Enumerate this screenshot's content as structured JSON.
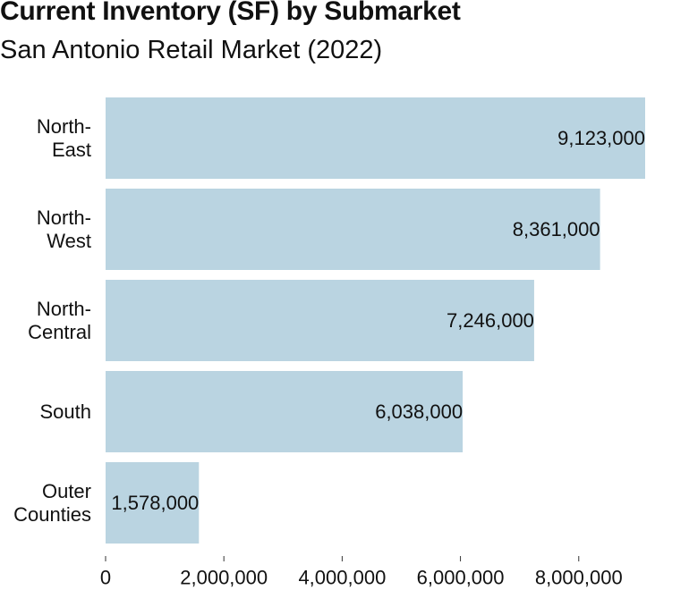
{
  "chart_data": {
    "type": "bar",
    "orientation": "horizontal",
    "title": "Current Inventory (SF) by Submarket",
    "subtitle": "San Antonio Retail Market (2022)",
    "xlabel": "",
    "ylabel": "",
    "categories": [
      [
        "North-",
        "East"
      ],
      [
        "North-",
        "West"
      ],
      [
        "North-",
        "Central"
      ],
      [
        "South"
      ],
      [
        "Outer",
        "Counties"
      ]
    ],
    "values": [
      9123000,
      8361000,
      7246000,
      6038000,
      1578000
    ],
    "value_labels": [
      "9,123,000",
      "8,361,000",
      "7,246,000",
      "6,038,000",
      "1,578,000"
    ],
    "xlim": [
      0,
      9123000
    ],
    "x_ticks": [
      0,
      2000000,
      4000000,
      6000000,
      8000000
    ],
    "x_tick_labels": [
      "0",
      "2,000,000",
      "4,000,000",
      "6,000,000",
      "8,000,000"
    ],
    "bar_color": "#bad4e1",
    "grid": false,
    "legend": "none"
  }
}
